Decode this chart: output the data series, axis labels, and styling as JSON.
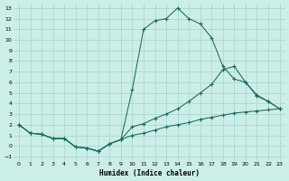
{
  "xlabel": "Humidex (Indice chaleur)",
  "bg_color": "#cceee8",
  "grid_color": "#aad8d0",
  "line_color": "#1a6b5a",
  "xlim": [
    -0.5,
    23.5
  ],
  "ylim": [
    -1.4,
    13.4
  ],
  "xticks": [
    0,
    1,
    2,
    3,
    4,
    5,
    6,
    7,
    8,
    9,
    10,
    11,
    12,
    13,
    14,
    15,
    16,
    17,
    18,
    19,
    20,
    21,
    22,
    23
  ],
  "yticks": [
    -1,
    0,
    1,
    2,
    3,
    4,
    5,
    6,
    7,
    8,
    9,
    10,
    11,
    12,
    13
  ],
  "curve1_x": [
    0,
    1,
    2,
    3,
    4,
    5,
    6,
    7,
    8,
    9,
    10,
    11,
    12,
    13,
    14,
    15,
    16,
    17,
    18,
    19,
    20,
    21,
    22,
    23
  ],
  "curve1_y": [
    2.0,
    1.2,
    1.1,
    0.7,
    0.7,
    -0.1,
    -0.2,
    -0.5,
    0.2,
    0.6,
    5.3,
    11.0,
    11.8,
    12.0,
    13.0,
    12.0,
    11.5,
    10.2,
    7.5,
    6.3,
    6.0,
    4.7,
    4.2,
    3.5
  ],
  "curve2_x": [
    0,
    1,
    2,
    3,
    4,
    5,
    6,
    7,
    8,
    9,
    10,
    11,
    12,
    13,
    14,
    15,
    16,
    17,
    18,
    19,
    20,
    21,
    22,
    23
  ],
  "curve2_y": [
    2.0,
    1.2,
    1.1,
    0.7,
    0.7,
    -0.1,
    -0.2,
    -0.5,
    0.2,
    0.6,
    1.8,
    2.1,
    2.6,
    3.0,
    3.5,
    4.2,
    5.0,
    5.8,
    7.2,
    7.5,
    6.0,
    4.8,
    4.2,
    3.5
  ],
  "curve3_x": [
    0,
    1,
    2,
    3,
    4,
    5,
    6,
    7,
    8,
    9,
    10,
    11,
    12,
    13,
    14,
    15,
    16,
    17,
    18,
    19,
    20,
    21,
    22,
    23
  ],
  "curve3_y": [
    2.0,
    1.2,
    1.1,
    0.7,
    0.7,
    -0.1,
    -0.2,
    -0.5,
    0.2,
    0.6,
    1.0,
    1.2,
    1.5,
    1.8,
    2.0,
    2.2,
    2.5,
    2.7,
    2.9,
    3.1,
    3.2,
    3.3,
    3.4,
    3.5
  ]
}
